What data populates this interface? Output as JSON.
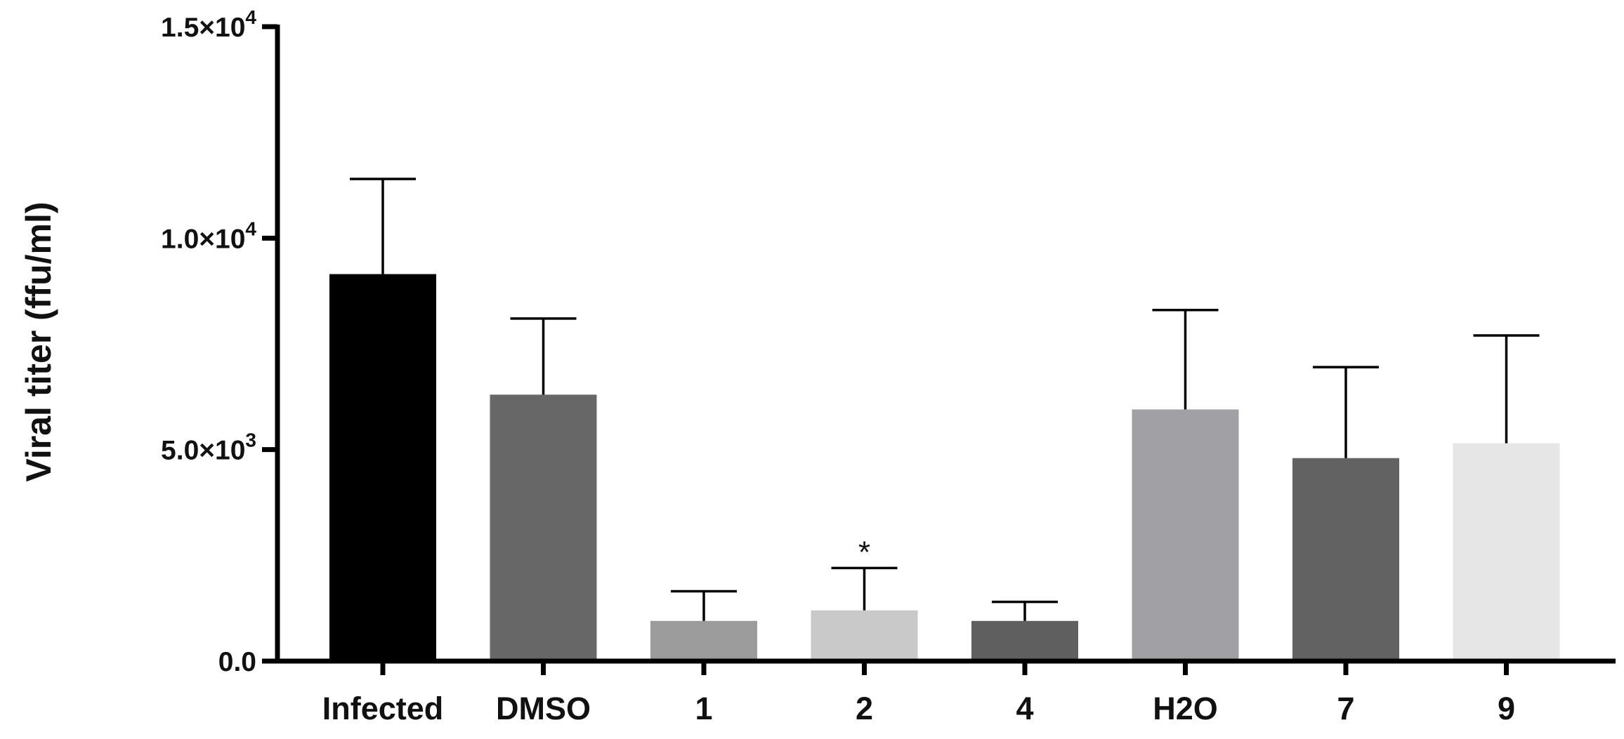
{
  "chart_data": {
    "type": "bar",
    "title": "",
    "xlabel": "",
    "ylabel": "Viral titer (ffu/ml)",
    "ylim": [
      0,
      15000
    ],
    "yticks": [
      {
        "value": 0,
        "mantissa": "0.0",
        "exponent": ""
      },
      {
        "value": 5000,
        "mantissa": "5.0×10",
        "exponent": "3"
      },
      {
        "value": 10000,
        "mantissa": "1.0×10",
        "exponent": "4"
      },
      {
        "value": 15000,
        "mantissa": "1.5×10",
        "exponent": "4"
      }
    ],
    "categories": [
      "Infected",
      "DMSO",
      "1",
      "2",
      "4",
      "H2O",
      "7",
      "9"
    ],
    "values": [
      9150,
      6300,
      950,
      1200,
      950,
      5950,
      4800,
      5150
    ],
    "errors": [
      2250,
      1800,
      700,
      1000,
      450,
      2350,
      2150,
      2550
    ],
    "colors": [
      "#000000",
      "#676767",
      "#9b9b9b",
      "#c9c9c9",
      "#5f5f5f",
      "#a1a0a5",
      "#626262",
      "#e6e6e6"
    ],
    "annotations": [
      {
        "category": "2",
        "text": "*"
      }
    ],
    "grid": false,
    "legend": "none"
  }
}
